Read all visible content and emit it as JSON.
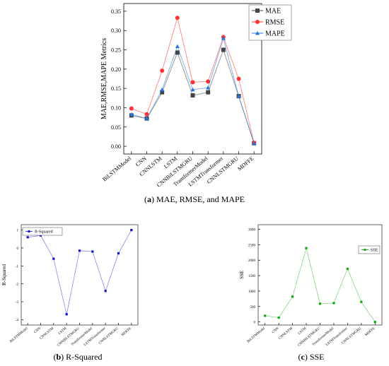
{
  "captions": {
    "a": {
      "letter": "a",
      "text": "MAE, RMSE, and MAPE"
    },
    "b": {
      "letter": "b",
      "text": "R-Squared"
    },
    "c": {
      "letter": "c",
      "text": "SSE"
    }
  },
  "colors": {
    "mae": "#444444",
    "rmse": "#ff3333",
    "mape": "#2277dd",
    "r2": "#1111cc",
    "sse": "#11aa11"
  },
  "chart_data": [
    {
      "type": "line",
      "panel": "a",
      "ylabel": "MAE,RMSE,MAPE Metrics",
      "xlabel": "",
      "categories": [
        "BiLSTMModel",
        "CNN",
        "CNNLSTM",
        "LSTM",
        "CNNBiLSTMGRU",
        "TransformerModel",
        "LSTMTransformer",
        "CNNLSTMGRU",
        "MDFFE"
      ],
      "ylim": [
        -0.02,
        0.37
      ],
      "yticks": [
        "0.00",
        "0.05",
        "0.10",
        "0.15",
        "0.20",
        "0.25",
        "0.30",
        "0.35"
      ],
      "legend": "top-right",
      "grid": false,
      "series": [
        {
          "name": "MAE",
          "marker": "square",
          "values": [
            0.08,
            0.072,
            0.14,
            0.243,
            0.132,
            0.14,
            0.25,
            0.13,
            0.008
          ]
        },
        {
          "name": "RMSE",
          "marker": "circle",
          "values": [
            0.098,
            0.083,
            0.196,
            0.333,
            0.166,
            0.168,
            0.283,
            0.175,
            0.009
          ]
        },
        {
          "name": "MAPE",
          "marker": "triangle",
          "values": [
            0.083,
            0.072,
            0.147,
            0.259,
            0.147,
            0.152,
            0.28,
            0.13,
            0.008
          ]
        }
      ]
    },
    {
      "type": "line",
      "panel": "b",
      "ylabel": "R-Squared",
      "xlabel": "",
      "categories": [
        "BiLSTMModel",
        "CNN",
        "CNNLSTM",
        "LSTM",
        "CNNBiLSTMGRU",
        "TransformerModel",
        "LSTMTransformer",
        "CNNLSTMGRU",
        "MDFFE"
      ],
      "ylim": [
        -4.3,
        1.3
      ],
      "yticks": [
        "1",
        "0",
        "-1",
        "-2",
        "-3",
        "-4"
      ],
      "legend": "top-left",
      "grid": false,
      "series": [
        {
          "name": "R-Squared",
          "marker": "square",
          "values": [
            0.6,
            0.7,
            -0.6,
            -3.7,
            -0.15,
            -0.2,
            -2.4,
            -0.3,
            1.0
          ]
        }
      ]
    },
    {
      "type": "line",
      "panel": "c",
      "ylabel": "SSE",
      "xlabel": "",
      "categories": [
        "BiLSTMModel",
        "CNN",
        "CNNLSTM",
        "LSTM",
        "CNNBiLSTMGRU",
        "TransformerModel",
        "LSTMTransformer",
        "CNNLSTMGRU",
        "MDFFE"
      ],
      "ylim": [
        -100,
        3150
      ],
      "yticks": [
        "0",
        "500",
        "1000",
        "1500",
        "2000",
        "2500",
        "3000"
      ],
      "legend": "top-right",
      "grid": false,
      "series": [
        {
          "name": "SSE",
          "marker": "square",
          "values": [
            200,
            140,
            820,
            2390,
            590,
            610,
            1720,
            650,
            0
          ]
        }
      ]
    }
  ]
}
